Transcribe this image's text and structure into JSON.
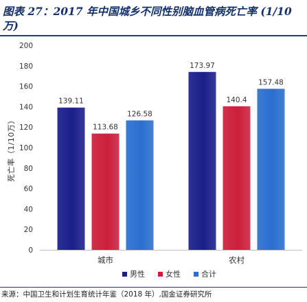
{
  "header": {
    "title": "图表 27：2017 年中国城乡不同性别脑血管病死亡率 (1/10 万)"
  },
  "footer": {
    "source": "来源：中国卫生和计划生育统计年鉴（2018 年）,国金证券研究所"
  },
  "colors": {
    "male": "#1a1f8a",
    "female": "#cc1f3c",
    "total": "#2a6fcf",
    "rule": "#1f3a78",
    "title": "#14306b"
  },
  "chart_data": {
    "type": "bar",
    "title": "",
    "ylabel": "死亡率（1/10万）",
    "xlabel": "",
    "categories": [
      "城市",
      "农村"
    ],
    "series": [
      {
        "name": "男性",
        "values": [
          139.11,
          173.97
        ],
        "labels": [
          "139.11",
          "173.97"
        ]
      },
      {
        "name": "女性",
        "values": [
          113.68,
          140.4
        ],
        "labels": [
          "113.68",
          "140.4"
        ]
      },
      {
        "name": "合计",
        "values": [
          126.58,
          157.48
        ],
        "labels": [
          "126.58",
          "157.48"
        ]
      }
    ],
    "ylim": [
      0,
      200
    ],
    "yticks": [
      0,
      20,
      40,
      60,
      80,
      100,
      120,
      140,
      160,
      180,
      200
    ],
    "grid": false,
    "legend": "bottom"
  }
}
